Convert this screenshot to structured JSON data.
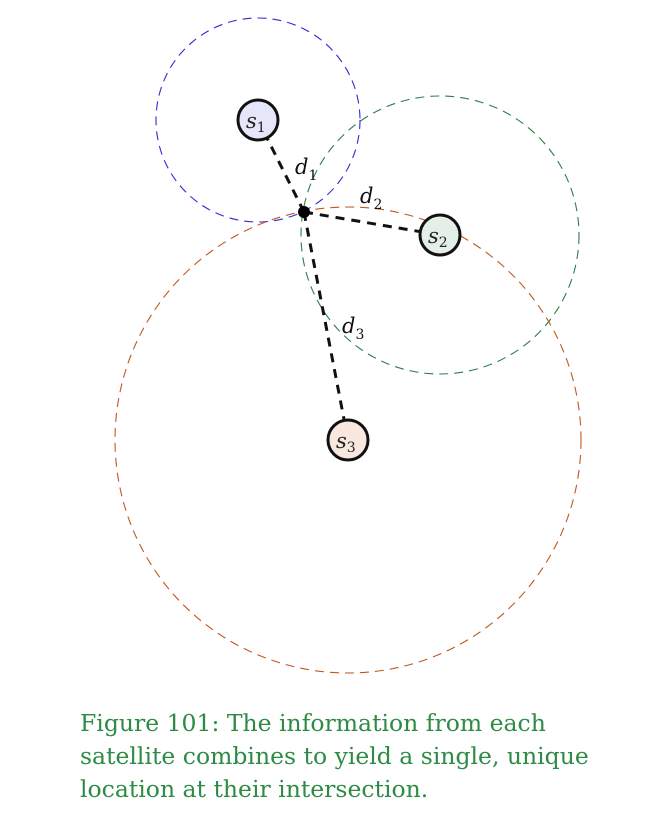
{
  "colors": {
    "circle_1": "#2b2bd6",
    "circle_2": "#2e7d4a",
    "circle_3": "#c0581e",
    "sat_1_fill": "#e6e6fb",
    "sat_2_fill": "#e4f0e7",
    "sat_3_fill": "#f8e8df",
    "caption": "#2e8b45"
  },
  "satellites": [
    {
      "base": "s",
      "sub": "1"
    },
    {
      "base": "s",
      "sub": "2"
    },
    {
      "base": "s",
      "sub": "3"
    }
  ],
  "distances": [
    {
      "base": "d",
      "sub": "1"
    },
    {
      "base": "d",
      "sub": "2"
    },
    {
      "base": "d",
      "sub": "3"
    }
  ],
  "caption": {
    "text": "Figure 101: The information from each satellite combines to yield a single, unique location at their intersection."
  }
}
